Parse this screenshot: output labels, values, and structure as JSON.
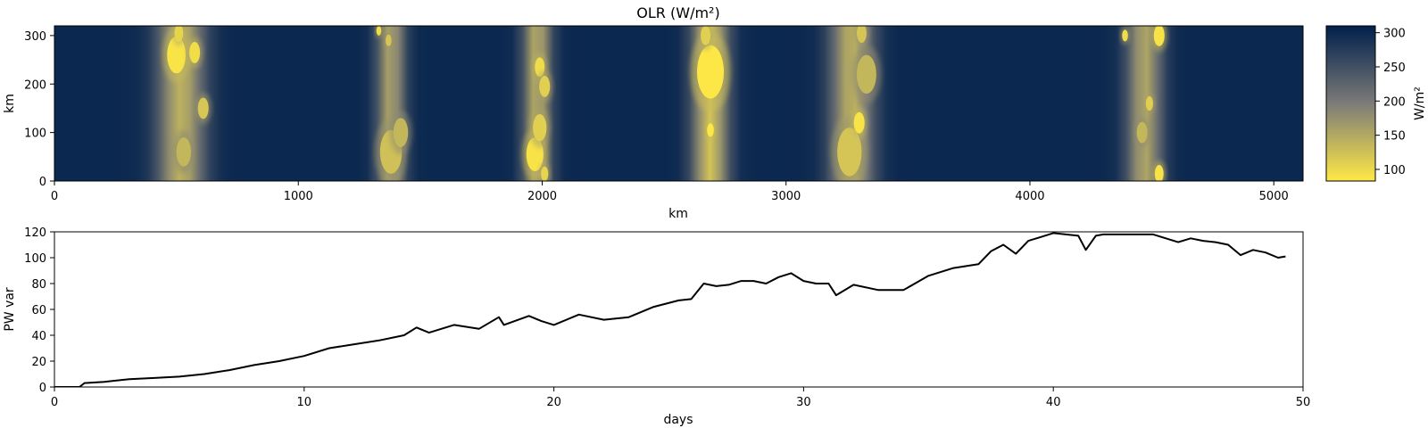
{
  "figure": {
    "title": "OLR (W/m²)"
  },
  "chart_data": [
    {
      "type": "heatmap",
      "title": "OLR (W/m²)",
      "xlabel": "km",
      "ylabel": "km",
      "xlim": [
        0,
        5120
      ],
      "ylim": [
        0,
        320
      ],
      "xticks": [
        0,
        1000,
        2000,
        3000,
        4000,
        5000
      ],
      "yticks": [
        0,
        100,
        200,
        300
      ],
      "colormap": [
        "#ffe945",
        "#7c7b78",
        "#00204c"
      ],
      "colorbar": {
        "label": "W/m²",
        "range": [
          83,
          310
        ],
        "ticks": [
          100,
          150,
          200,
          250,
          300
        ]
      },
      "background_value": 300,
      "convective_bands": [
        {
          "x_center": 520,
          "half_width": 120,
          "min_olr": 140
        },
        {
          "x_center": 1380,
          "half_width": 70,
          "min_olr": 150
        },
        {
          "x_center": 1980,
          "half_width": 70,
          "min_olr": 140
        },
        {
          "x_center": 2690,
          "half_width": 90,
          "min_olr": 120
        },
        {
          "x_center": 3270,
          "half_width": 110,
          "min_olr": 140
        },
        {
          "x_center": 4470,
          "half_width": 90,
          "min_olr": 150
        }
      ],
      "cells": [
        {
          "x": 500,
          "y": 260,
          "r": 38,
          "olr": 88
        },
        {
          "x": 575,
          "y": 265,
          "r": 22,
          "olr": 95
        },
        {
          "x": 510,
          "y": 305,
          "r": 18,
          "olr": 105
        },
        {
          "x": 610,
          "y": 150,
          "r": 22,
          "olr": 118
        },
        {
          "x": 530,
          "y": 60,
          "r": 30,
          "olr": 135
        },
        {
          "x": 1330,
          "y": 310,
          "r": 10,
          "olr": 95
        },
        {
          "x": 1370,
          "y": 290,
          "r": 12,
          "olr": 120
        },
        {
          "x": 1380,
          "y": 60,
          "r": 45,
          "olr": 125
        },
        {
          "x": 1420,
          "y": 100,
          "r": 30,
          "olr": 135
        },
        {
          "x": 1990,
          "y": 235,
          "r": 20,
          "olr": 95
        },
        {
          "x": 2010,
          "y": 195,
          "r": 22,
          "olr": 110
        },
        {
          "x": 1970,
          "y": 55,
          "r": 35,
          "olr": 90
        },
        {
          "x": 1990,
          "y": 110,
          "r": 28,
          "olr": 110
        },
        {
          "x": 2010,
          "y": 15,
          "r": 15,
          "olr": 105
        },
        {
          "x": 2690,
          "y": 225,
          "r": 55,
          "olr": 85
        },
        {
          "x": 2670,
          "y": 300,
          "r": 20,
          "olr": 110
        },
        {
          "x": 2690,
          "y": 105,
          "r": 14,
          "olr": 85
        },
        {
          "x": 3260,
          "y": 60,
          "r": 50,
          "olr": 120
        },
        {
          "x": 3300,
          "y": 120,
          "r": 22,
          "olr": 88
        },
        {
          "x": 3330,
          "y": 220,
          "r": 40,
          "olr": 135
        },
        {
          "x": 3310,
          "y": 305,
          "r": 20,
          "olr": 120
        },
        {
          "x": 4390,
          "y": 300,
          "r": 12,
          "olr": 95
        },
        {
          "x": 4530,
          "y": 300,
          "r": 22,
          "olr": 90
        },
        {
          "x": 4530,
          "y": 15,
          "r": 18,
          "olr": 90
        },
        {
          "x": 4490,
          "y": 160,
          "r": 15,
          "olr": 110
        },
        {
          "x": 4460,
          "y": 100,
          "r": 22,
          "olr": 135
        }
      ]
    },
    {
      "type": "line",
      "title": "",
      "xlabel": "days",
      "ylabel": "PW var",
      "xlim": [
        0,
        50
      ],
      "ylim": [
        0,
        120
      ],
      "xticks": [
        0,
        10,
        20,
        30,
        40,
        50
      ],
      "yticks": [
        0,
        20,
        40,
        60,
        80,
        100,
        120
      ],
      "color": "#000000",
      "x": [
        0,
        1,
        1.2,
        2,
        3,
        4,
        5,
        6,
        7,
        8,
        9,
        10,
        11,
        12,
        13,
        14,
        14.5,
        15,
        16,
        17,
        17.8,
        18,
        19,
        19.5,
        20,
        21,
        22,
        23,
        24,
        25,
        25.5,
        26,
        26.5,
        27,
        27.5,
        28,
        28.5,
        29,
        29.5,
        30,
        30.5,
        31,
        31.3,
        32,
        33,
        34,
        35,
        36,
        37,
        37.5,
        38,
        38.5,
        39,
        39.5,
        40,
        40.5,
        41,
        41.3,
        41.7,
        42,
        43,
        44,
        45,
        45.5,
        46,
        46.5,
        47,
        47.5,
        48,
        48.5,
        49,
        49.3
      ],
      "y": [
        0,
        0,
        3,
        4,
        6,
        7,
        8,
        10,
        13,
        17,
        20,
        24,
        30,
        33,
        36,
        40,
        46,
        42,
        48,
        45,
        54,
        48,
        55,
        51,
        48,
        56,
        52,
        54,
        62,
        67,
        68,
        80,
        78,
        79,
        82,
        82,
        80,
        85,
        88,
        82,
        80,
        80,
        71,
        79,
        75,
        75,
        86,
        92,
        95,
        105,
        110,
        103,
        113,
        116,
        119,
        118,
        117,
        106,
        117,
        118,
        118,
        118,
        112,
        115,
        113,
        112,
        110,
        102,
        106,
        104,
        100,
        101
      ]
    }
  ]
}
